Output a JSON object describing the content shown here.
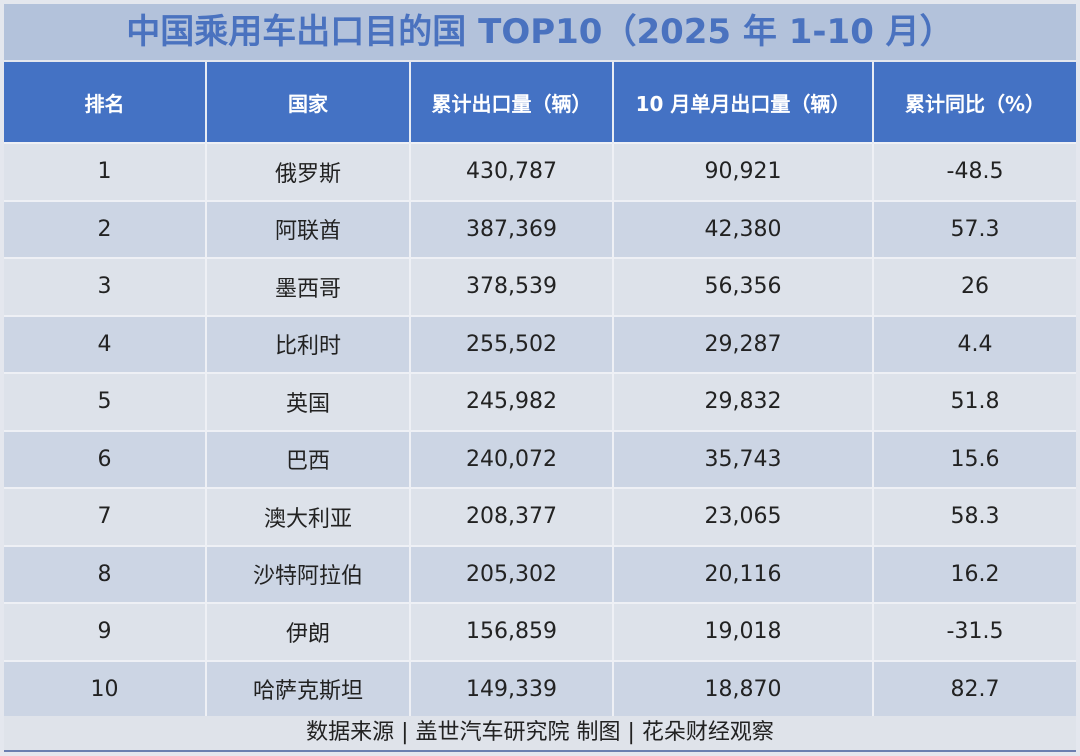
{
  "title": "中国乘用车出口目的国 TOP10（2025 年 1-10 月）",
  "headers": [
    "排名",
    "国家",
    "累计出口量（辆）",
    "10 月单月出口量（辆）",
    "累计同比（%）"
  ],
  "rows": [
    [
      "1",
      "俄罗斯",
      "430,787",
      "90,921",
      "-48.5"
    ],
    [
      "2",
      "阿联酋",
      "387,369",
      "42,380",
      "57.3"
    ],
    [
      "3",
      "墨西哥",
      "378,539",
      "56,356",
      "26"
    ],
    [
      "4",
      "比利时",
      "255,502",
      "29,287",
      "4.4"
    ],
    [
      "5",
      "英国",
      "245,982",
      "29,832",
      "51.8"
    ],
    [
      "6",
      "巴西",
      "240,072",
      "35,743",
      "15.6"
    ],
    [
      "7",
      "澳大利亚",
      "208,377",
      "23,065",
      "58.3"
    ],
    [
      "8",
      "沙特阿拉伯",
      "205,302",
      "20,116",
      "16.2"
    ],
    [
      "9",
      "伊朗",
      "156,859",
      "19,018",
      "-31.5"
    ],
    [
      "10",
      "哈萨克斯坦",
      "149,339",
      "18,870",
      "82.7"
    ]
  ],
  "footer": "数据来源 | 盖世汽车研究院  制图 | 花朵财经观察",
  "colors": {
    "header": "#4472c4",
    "title_text": "#4a72bf"
  }
}
